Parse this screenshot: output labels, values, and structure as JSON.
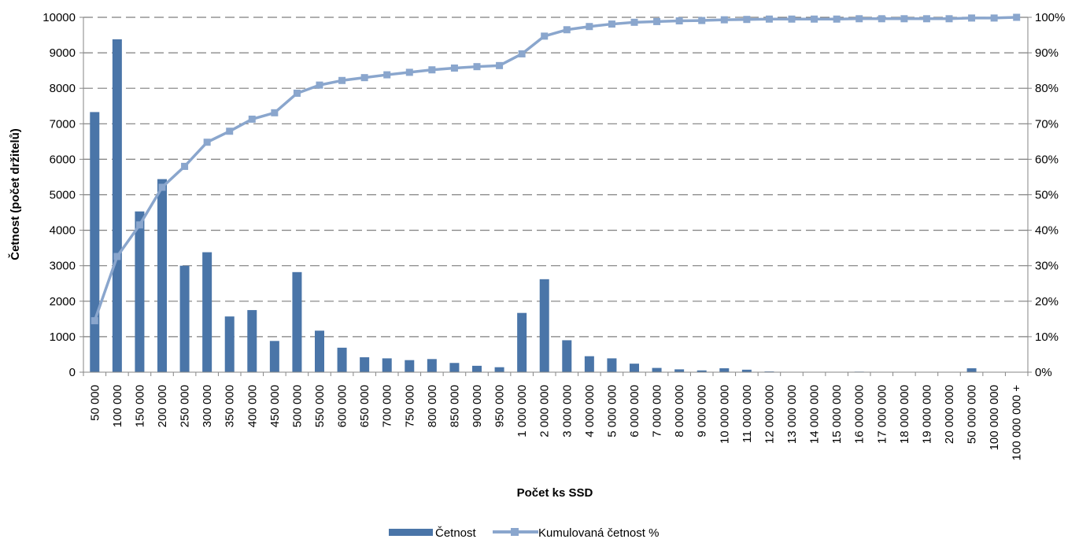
{
  "chart_data": {
    "type": "bar",
    "categories": [
      "50 000",
      "100 000",
      "150 000",
      "200 000",
      "250 000",
      "300 000",
      "350 000",
      "400 000",
      "450 000",
      "500 000",
      "550 000",
      "600 000",
      "650 000",
      "700 000",
      "750 000",
      "800 000",
      "850 000",
      "900 000",
      "950 000",
      "1 000 000",
      "2 000 000",
      "3 000 000",
      "4 000 000",
      "5 000 000",
      "6 000 000",
      "7 000 000",
      "8 000 000",
      "9 000 000",
      "10 000 000",
      "11 000 000",
      "12 000 000",
      "13 000 000",
      "14 000 000",
      "15 000 000",
      "16 000 000",
      "17 000 000",
      "18 000 000",
      "19 000 000",
      "20 000 000",
      "50 000 000",
      "100 000 000",
      "100 000 000 +"
    ],
    "series": [
      {
        "name": "Četnost",
        "kind": "bar",
        "axis": "left",
        "color": "#4a75a8",
        "values": [
          7330,
          9380,
          4530,
          5440,
          3000,
          3380,
          1570,
          1750,
          880,
          2820,
          1170,
          690,
          420,
          390,
          340,
          370,
          260,
          180,
          140,
          1670,
          2620,
          900,
          450,
          390,
          240,
          120,
          80,
          50,
          110,
          70,
          20,
          10,
          10,
          10,
          15,
          5,
          5,
          5,
          5,
          110,
          5,
          0
        ]
      },
      {
        "name": "Kumulovaná četnost %",
        "kind": "line",
        "axis": "right",
        "color": "#8aa6cd",
        "marker": "square",
        "values": [
          14.5,
          32.6,
          41.5,
          52.1,
          58.0,
          64.8,
          67.9,
          71.3,
          73.1,
          78.6,
          80.9,
          82.2,
          83.0,
          83.8,
          84.5,
          85.2,
          85.7,
          86.1,
          86.4,
          89.7,
          94.7,
          96.5,
          97.4,
          98.1,
          98.6,
          98.8,
          99.0,
          99.1,
          99.3,
          99.4,
          99.5,
          99.5,
          99.5,
          99.5,
          99.6,
          99.6,
          99.6,
          99.6,
          99.6,
          99.8,
          99.8,
          100.0
        ]
      }
    ],
    "ylabel": "Četnost (počet držitelů)",
    "xlabel": "Počet ks SSD",
    "ylim": [
      0,
      10000
    ],
    "y_ticks": [
      "0",
      "1000",
      "2000",
      "3000",
      "4000",
      "5000",
      "6000",
      "7000",
      "8000",
      "9000",
      "10000"
    ],
    "y2lim": [
      0,
      100
    ],
    "y2_ticks": [
      "0%",
      "10%",
      "20%",
      "30%",
      "40%",
      "50%",
      "60%",
      "70%",
      "80%",
      "90%",
      "100%"
    ],
    "grid": "horizontal dashed",
    "legend_position": "bottom"
  }
}
